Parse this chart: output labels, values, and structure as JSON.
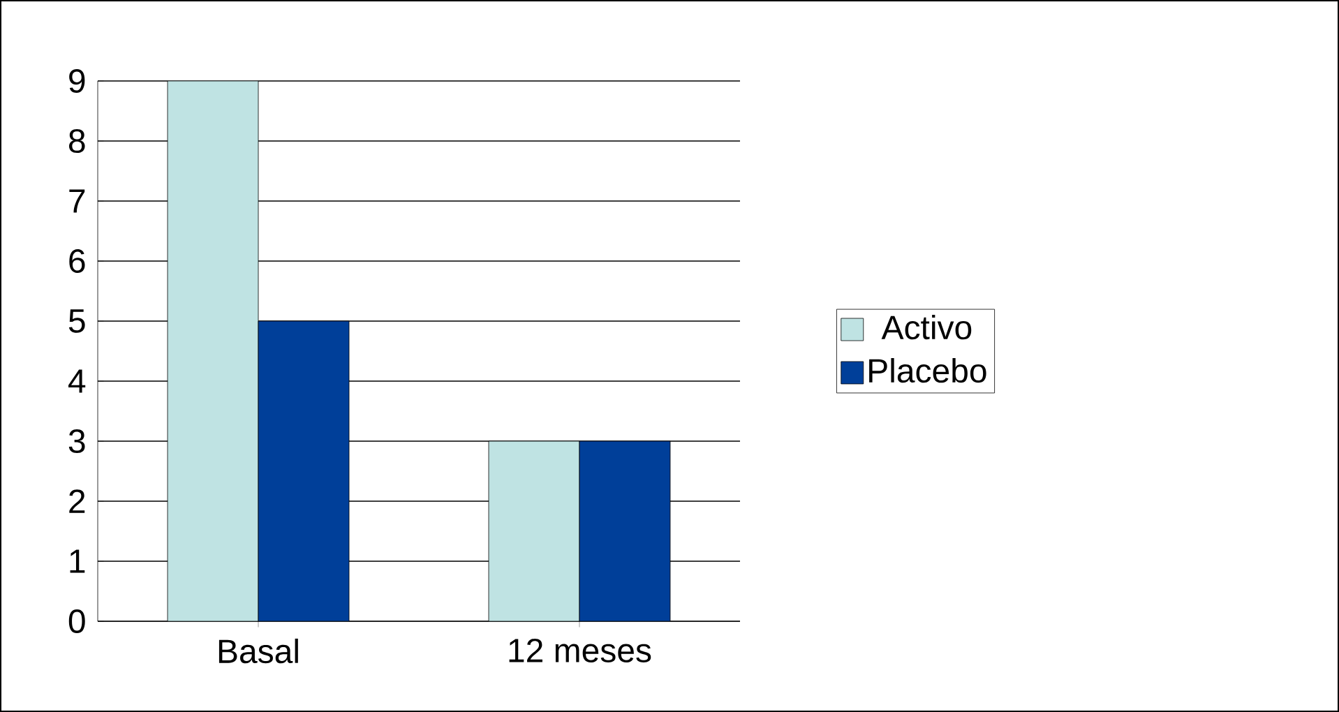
{
  "chart_data": {
    "type": "bar",
    "categories": [
      "Basal",
      "12 meses"
    ],
    "series": [
      {
        "name": "Activo",
        "color": "#bfe3e3",
        "values": [
          9,
          3
        ]
      },
      {
        "name": "Placebo",
        "color": "#003f99",
        "values": [
          5,
          3
        ]
      }
    ],
    "ylim": [
      0,
      9
    ],
    "yticks": [
      0,
      1,
      2,
      3,
      4,
      5,
      6,
      7,
      8,
      9
    ],
    "grid": "y",
    "legend": "right"
  }
}
